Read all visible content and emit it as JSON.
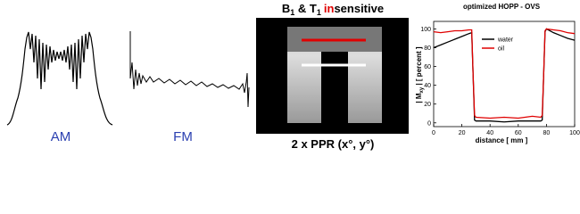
{
  "am_label": "AM",
  "fm_label": "FM",
  "image_header": {
    "b": "B",
    "b_sub": "1",
    "mid": " & T",
    "t_sub": "1",
    "in": "in",
    "rest": "sensitive"
  },
  "image_caption": "2 x PPR (x°, y°)",
  "chart_data": {
    "type": "line",
    "title": "optimized HOPP - OVS",
    "xlabel": "distance [ mm ]",
    "ylabel": {
      "pre": "| M",
      "sub": "xy",
      "post": " | [ percent ]"
    },
    "x": [
      0,
      5,
      10,
      15,
      20,
      25,
      27,
      28,
      29,
      30,
      40,
      50,
      60,
      70,
      76,
      77,
      78,
      79,
      80,
      85,
      90,
      95,
      100
    ],
    "series": [
      {
        "name": "water",
        "color": "#000000",
        "values": [
          80,
          83,
          86,
          89,
          92,
          95,
          96,
          50,
          3,
          2,
          2,
          1,
          2,
          2,
          2,
          3,
          50,
          97,
          100,
          96,
          93,
          90,
          88
        ]
      },
      {
        "name": "oil",
        "color": "#e00000",
        "values": [
          97,
          96,
          97,
          98,
          98,
          99,
          99,
          50,
          8,
          6,
          5,
          6,
          5,
          7,
          6,
          8,
          50,
          98,
          100,
          99,
          98,
          96,
          95
        ]
      }
    ],
    "xlim": [
      0,
      100
    ],
    "xticks": [
      0,
      20,
      40,
      60,
      80,
      100
    ],
    "ylim": [
      -4,
      108
    ],
    "yticks": [
      0,
      20,
      40,
      60,
      80,
      100
    ],
    "legend": "upper-center"
  }
}
